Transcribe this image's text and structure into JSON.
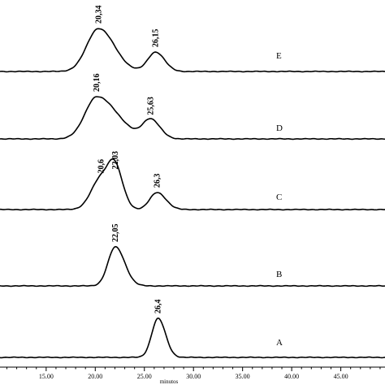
{
  "chart_data": {
    "type": "line",
    "title": "",
    "xlabel": "minutos",
    "ylabel": "",
    "xlim": [
      10.3,
      49.5
    ],
    "xticks": [
      "15.00",
      "20.00",
      "25.00",
      "30.00",
      "35.00",
      "40.00",
      "45.00"
    ],
    "xtick_values": [
      15,
      20,
      25,
      30,
      35,
      40,
      45
    ],
    "grid": false,
    "legend": "none",
    "series": [
      {
        "name": "E",
        "peaks": [
          {
            "x": 20.34,
            "label": "20,34",
            "height": 1.0,
            "left_width": 1.2,
            "right_width": 1.6
          },
          {
            "x": 26.15,
            "label": "26,15",
            "height": 0.45,
            "left_width": 0.8,
            "right_width": 0.9
          }
        ]
      },
      {
        "name": "D",
        "peaks": [
          {
            "x": 20.16,
            "label": "20,16",
            "height": 1.0,
            "left_width": 1.2,
            "right_width": 2.1
          },
          {
            "x": 25.63,
            "label": "25,63",
            "height": 0.45,
            "left_width": 0.8,
            "right_width": 0.95
          }
        ]
      },
      {
        "name": "C",
        "peaks": [
          {
            "x": 20.6,
            "label": "20,6",
            "height": 0.7,
            "left_width": 1.0,
            "right_width": 1.1
          },
          {
            "x": 22.03,
            "label": "22,03",
            "height": 0.79,
            "left_width": 0.7,
            "right_width": 0.8
          },
          {
            "x": 26.3,
            "label": "26,3",
            "height": 0.38,
            "left_width": 0.75,
            "right_width": 0.9
          }
        ]
      },
      {
        "name": "B",
        "peaks": [
          {
            "x": 22.05,
            "label": "22,05",
            "height": 1.0,
            "left_width": 0.75,
            "right_width": 0.95
          }
        ]
      },
      {
        "name": "A",
        "peaks": [
          {
            "x": 26.4,
            "label": "26,4",
            "height": 1.0,
            "left_width": 0.65,
            "right_width": 0.75
          }
        ]
      }
    ]
  }
}
